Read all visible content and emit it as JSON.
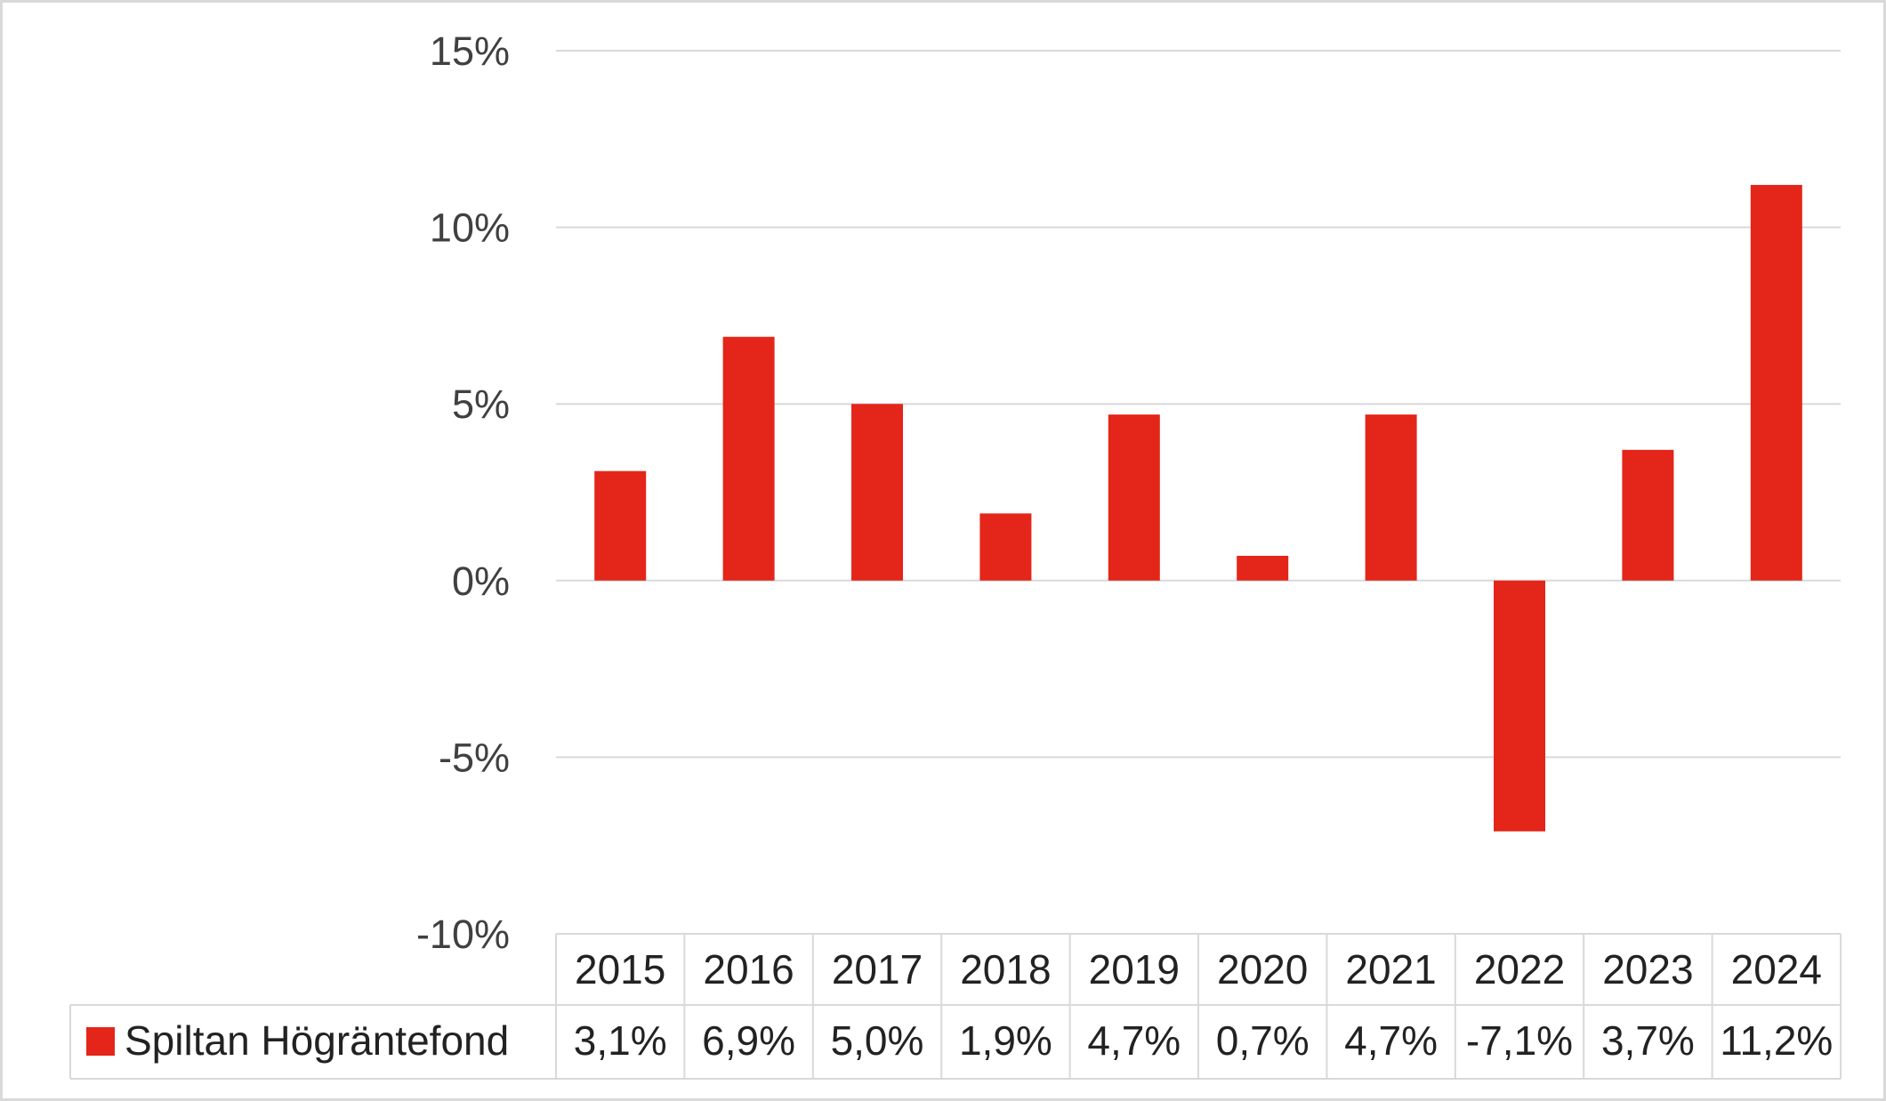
{
  "chart_data": {
    "type": "bar",
    "categories": [
      "2015",
      "2016",
      "2017",
      "2018",
      "2019",
      "2020",
      "2021",
      "2022",
      "2023",
      "2024"
    ],
    "series": [
      {
        "name": "Spiltan Högräntefond",
        "values": [
          3.1,
          6.9,
          5.0,
          1.9,
          4.7,
          0.7,
          4.7,
          -7.1,
          3.7,
          11.2
        ],
        "labels": [
          "3,1%",
          "6,9%",
          "5,0%",
          "1,9%",
          "4,7%",
          "0,7%",
          "4,7%",
          "-7,1%",
          "3,7%",
          "11,2%"
        ],
        "color": "#e32619"
      }
    ],
    "ylim": [
      -10,
      15
    ],
    "yticks": [
      15,
      10,
      5,
      0,
      -5,
      -10
    ],
    "ytick_labels": [
      "15%",
      "10%",
      "5%",
      "0%",
      "-5%",
      "-10%"
    ],
    "grid": true,
    "legend": "data-table-left",
    "title": "",
    "xlabel": "",
    "ylabel": ""
  },
  "colors": {
    "bar": "#e32619",
    "grid": "#d9d9d9",
    "table_border": "#d9d9d9",
    "frame": "#d9d9d9"
  }
}
